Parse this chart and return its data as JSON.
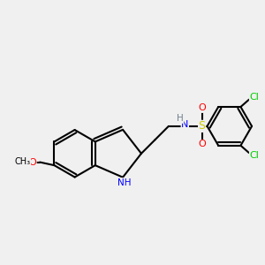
{
  "background_color": "#f0f0f0",
  "bond_color": "#000000",
  "figsize": [
    3.0,
    3.0
  ],
  "dpi": 100,
  "atom_colors": {
    "N": "#0000ff",
    "O": "#ff0000",
    "S": "#cccc00",
    "Cl": "#00cc00",
    "C": "#000000",
    "H": "#708090"
  }
}
